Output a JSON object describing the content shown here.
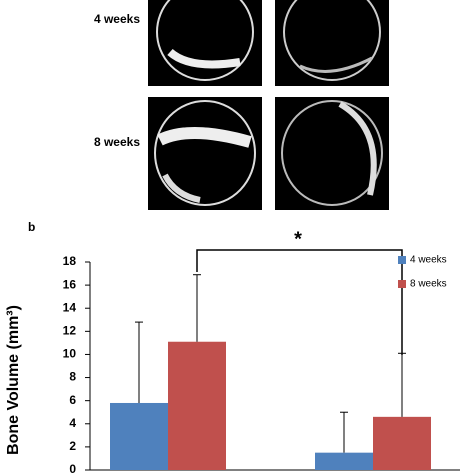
{
  "chart_data": {
    "type": "bar",
    "panel_label": "b",
    "row_labels": [
      "4 weeks",
      "8 weeks"
    ],
    "y_label": "Bone Volume (mm³)",
    "annotation": "*",
    "categories": [
      null,
      null
    ],
    "series": [
      {
        "name": "4 weeks",
        "color": "#4f81bd",
        "values": [
          5.8,
          1.5
        ],
        "errors": [
          7.0,
          3.5
        ]
      },
      {
        "name": "8 weeks",
        "color": "#c0504d",
        "values": [
          11.1,
          4.6
        ],
        "errors": [
          5.8,
          5.5
        ]
      }
    ],
    "ylim": [
      0,
      18
    ],
    "yticks": [
      0,
      2,
      4,
      6,
      8,
      10,
      12,
      14,
      16,
      18
    ]
  }
}
